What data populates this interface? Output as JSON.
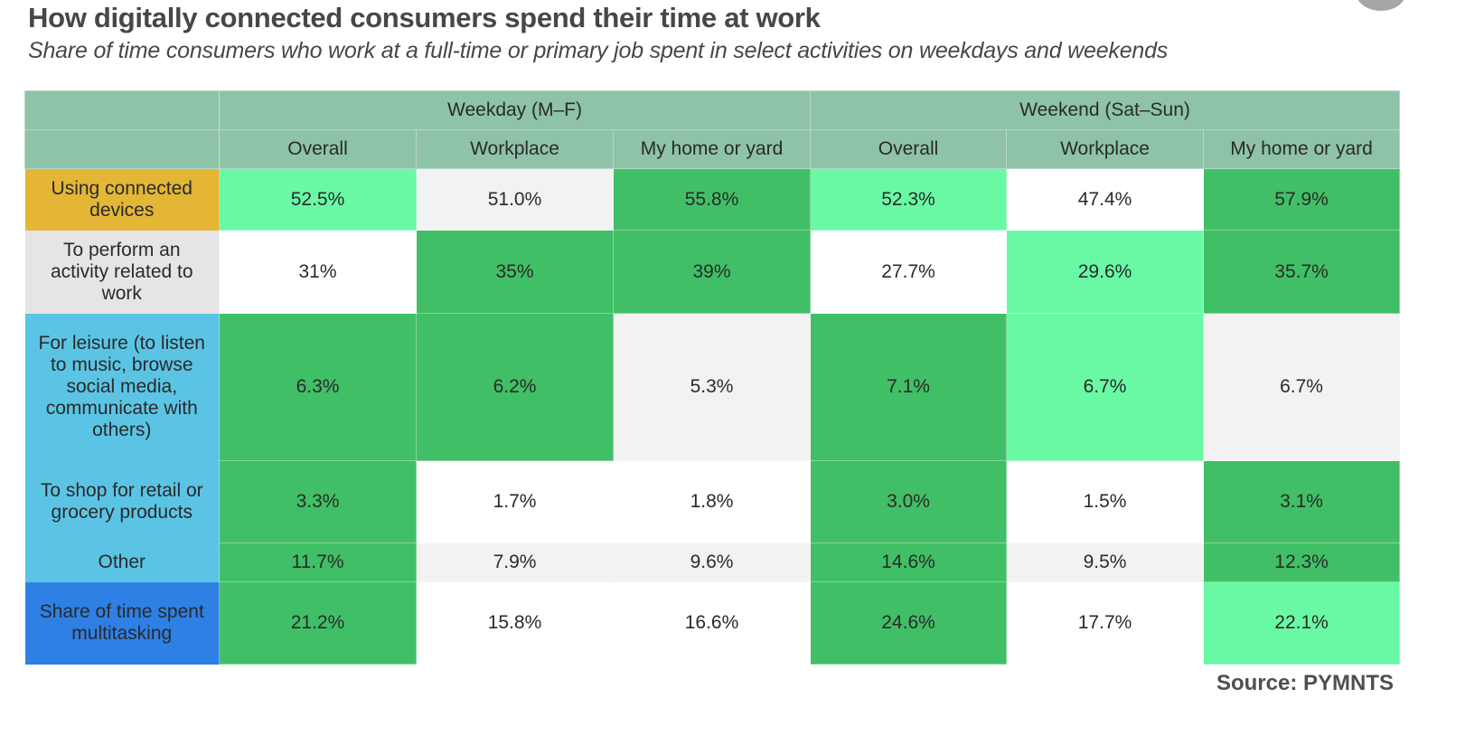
{
  "header": {
    "title": "How digitally connected consumers spend their time at work",
    "subtitle": "Share of time consumers who work at a full-time or primary job spent in select activities on weekdays and weekends"
  },
  "footer": {
    "source": "Source: PYMNTS"
  },
  "colors": {
    "header_bg": "#8ec3a8",
    "light_green": "#69f9a4",
    "dark_green": "#41bf66",
    "light_gray": "#f2f2f2",
    "white": "#ffffff",
    "row_label_yellow": "#e3b635",
    "row_label_gray": "#e5e5e5",
    "row_label_cyan": "#5bc4e5",
    "row_label_blue": "#2e80e5"
  },
  "chart_data": {
    "type": "table",
    "title": "How digitally connected consumers spend their time at work",
    "subtitle": "Share of time consumers who work at a full-time or primary job spent in select activities on weekdays and weekends",
    "column_groups": [
      {
        "label": "Weekday (M–F)",
        "columns": [
          "Overall",
          "Workplace",
          "My home or yard"
        ]
      },
      {
        "label": "Weekend (Sat–Sun)",
        "columns": [
          "Overall",
          "Workplace",
          "My home or yard"
        ]
      }
    ],
    "rows": [
      {
        "label": "Using connected devices",
        "label_color": "#e3b635",
        "values": [
          "52.5%",
          "51.0%",
          "55.8%",
          "52.3%",
          "47.4%",
          "57.9%"
        ],
        "cell_colors": [
          "#69f9a4",
          "#f2f2f2",
          "#41bf66",
          "#69f9a4",
          "#ffffff",
          "#41bf66"
        ]
      },
      {
        "label": "To perform an activity related to work",
        "label_color": "#e5e5e5",
        "values": [
          "31%",
          "35%",
          "39%",
          "27.7%",
          "29.6%",
          "35.7%"
        ],
        "cell_colors": [
          "#ffffff",
          "#41bf66",
          "#41bf66",
          "#ffffff",
          "#69f9a4",
          "#41bf66"
        ]
      },
      {
        "label": "For leisure (to listen to music, browse social media, communicate with others)",
        "label_color": "#5bc4e5",
        "values": [
          "6.3%",
          "6.2%",
          "5.3%",
          "7.1%",
          "6.7%",
          "6.7%"
        ],
        "cell_colors": [
          "#41bf66",
          "#41bf66",
          "#f2f2f2",
          "#41bf66",
          "#69f9a4",
          "#f2f2f2"
        ]
      },
      {
        "label": "To shop for retail or grocery products",
        "label_color": "#5bc4e5",
        "values": [
          "3.3%",
          "1.7%",
          "1.8%",
          "3.0%",
          "1.5%",
          "3.1%"
        ],
        "cell_colors": [
          "#41bf66",
          "#ffffff",
          "#ffffff",
          "#41bf66",
          "#ffffff",
          "#41bf66"
        ]
      },
      {
        "label": "Other",
        "label_color": "#5bc4e5",
        "values": [
          "11.7%",
          "7.9%",
          "9.6%",
          "14.6%",
          "9.5%",
          "12.3%"
        ],
        "cell_colors": [
          "#41bf66",
          "#f2f2f2",
          "#f2f2f2",
          "#41bf66",
          "#f2f2f2",
          "#41bf66"
        ]
      },
      {
        "label": "Share of time spent multitasking",
        "label_color": "#2e80e5",
        "values": [
          "21.2%",
          "15.8%",
          "16.6%",
          "24.6%",
          "17.7%",
          "22.1%"
        ],
        "cell_colors": [
          "#41bf66",
          "#ffffff",
          "#ffffff",
          "#41bf66",
          "#ffffff",
          "#69f9a4"
        ]
      }
    ]
  }
}
